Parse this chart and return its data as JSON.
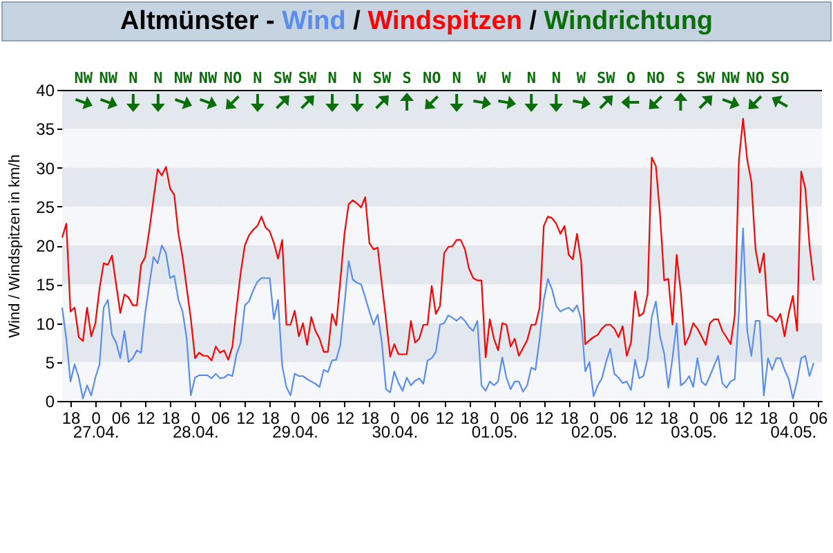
{
  "chart_data": {
    "type": "line",
    "title": "Altmünster - Wind / Windspitzen / Windrichtung",
    "ylabel": "Wind / Windspitzen in km/h",
    "x": [
      "--04-26T16:00",
      "--04-26T17:00",
      "--04-26T18:00",
      "--04-26T19:00",
      "--04-26T20:00",
      "--04-26T21:00",
      "--04-26T22:00",
      "--04-26T23:00",
      "--04-27T00:00",
      "--04-27T01:00",
      "--04-27T02:00",
      "--04-27T03:00",
      "--04-27T04:00",
      "--04-27T05:00",
      "--04-27T06:00",
      "--04-27T07:00",
      "--04-27T08:00",
      "--04-27T09:00",
      "--04-27T10:00",
      "--04-27T11:00",
      "--04-27T12:00",
      "--04-27T13:00",
      "--04-27T14:00",
      "--04-27T15:00",
      "--04-27T16:00",
      "--04-27T17:00",
      "--04-27T18:00",
      "--04-27T19:00",
      "--04-27T20:00",
      "--04-27T21:00",
      "--04-27T22:00",
      "--04-27T23:00",
      "--04-28T00:00",
      "--04-28T01:00",
      "--04-28T02:00",
      "--04-28T03:00",
      "--04-28T04:00",
      "--04-28T05:00",
      "--04-28T06:00",
      "--04-28T07:00",
      "--04-28T08:00",
      "--04-28T09:00",
      "--04-28T10:00",
      "--04-28T11:00",
      "--04-28T12:00",
      "--04-28T13:00",
      "--04-28T14:00",
      "--04-28T15:00",
      "--04-28T16:00",
      "--04-28T17:00",
      "--04-28T18:00",
      "--04-28T19:00",
      "--04-28T20:00",
      "--04-28T21:00",
      "--04-28T22:00",
      "--04-28T23:00",
      "--04-29T00:00",
      "--04-29T01:00",
      "--04-29T02:00",
      "--04-29T03:00",
      "--04-29T04:00",
      "--04-29T05:00",
      "--04-29T06:00",
      "--04-29T07:00",
      "--04-29T08:00",
      "--04-29T09:00",
      "--04-29T10:00",
      "--04-29T11:00",
      "--04-29T12:00",
      "--04-29T13:00",
      "--04-29T14:00",
      "--04-29T15:00",
      "--04-29T16:00",
      "--04-29T17:00",
      "--04-29T18:00",
      "--04-29T19:00",
      "--04-29T20:00",
      "--04-29T21:00",
      "--04-29T22:00",
      "--04-29T23:00",
      "--04-30T00:00",
      "--04-30T01:00",
      "--04-30T02:00",
      "--04-30T03:00",
      "--04-30T04:00",
      "--04-30T05:00",
      "--04-30T06:00",
      "--04-30T07:00",
      "--04-30T08:00",
      "--04-30T09:00",
      "--04-30T10:00",
      "--04-30T11:00",
      "--04-30T12:00",
      "--04-30T13:00",
      "--04-30T14:00",
      "--04-30T15:00",
      "--04-30T16:00",
      "--04-30T17:00",
      "--04-30T18:00",
      "--04-30T19:00",
      "--04-30T20:00",
      "--04-30T21:00",
      "--04-30T22:00",
      "--04-30T23:00",
      "--05-01T00:00",
      "--05-01T01:00",
      "--05-01T02:00",
      "--05-01T03:00",
      "--05-01T04:00",
      "--05-01T05:00",
      "--05-01T06:00",
      "--05-01T07:00",
      "--05-01T08:00",
      "--05-01T09:00",
      "--05-01T10:00",
      "--05-01T11:00",
      "--05-01T12:00",
      "--05-01T13:00",
      "--05-01T14:00",
      "--05-01T15:00",
      "--05-01T16:00",
      "--05-01T17:00",
      "--05-01T18:00",
      "--05-01T19:00",
      "--05-01T20:00",
      "--05-01T21:00",
      "--05-01T22:00",
      "--05-01T23:00",
      "--05-02T00:00",
      "--05-02T01:00",
      "--05-02T02:00",
      "--05-02T03:00",
      "--05-02T04:00",
      "--05-02T05:00",
      "--05-02T06:00",
      "--05-02T07:00",
      "--05-02T08:00",
      "--05-02T09:00",
      "--05-02T10:00",
      "--05-02T11:00",
      "--05-02T12:00",
      "--05-02T13:00",
      "--05-02T14:00",
      "--05-02T15:00",
      "--05-02T16:00",
      "--05-02T17:00",
      "--05-02T18:00",
      "--05-02T19:00",
      "--05-02T20:00",
      "--05-02T21:00",
      "--05-02T22:00",
      "--05-02T23:00",
      "--05-03T00:00",
      "--05-03T01:00",
      "--05-03T02:00",
      "--05-03T03:00",
      "--05-03T04:00",
      "--05-03T05:00",
      "--05-03T06:00",
      "--05-03T07:00",
      "--05-03T08:00",
      "--05-03T09:00",
      "--05-03T10:00",
      "--05-03T11:00",
      "--05-03T12:00",
      "--05-03T13:00",
      "--05-03T14:00",
      "--05-03T15:00",
      "--05-03T16:00",
      "--05-03T17:00",
      "--05-03T18:00",
      "--05-03T19:00",
      "--05-03T20:00",
      "--05-03T21:00",
      "--05-03T22:00",
      "--05-03T23:00",
      "--05-04T00:00",
      "--05-04T01:00",
      "--05-04T02:00",
      "--05-04T03:00",
      "--05-04T04:00",
      "--05-04T05:00"
    ],
    "series": [
      {
        "color": "#5b8def",
        "values": [
          12,
          8,
          2.5,
          4.7,
          3,
          0.3,
          2,
          0.7,
          3,
          4.7,
          12,
          13,
          8.5,
          7.5,
          5.5,
          9,
          5,
          5.5,
          6.5,
          6.2,
          11.3,
          15,
          18.5,
          17.7,
          20,
          19,
          15.8,
          16.1,
          13,
          11.5,
          8,
          0.7,
          3,
          3.3,
          3.3,
          3.3,
          2.9,
          3.5,
          2.9,
          3,
          3.4,
          3.2,
          6,
          7.5,
          12.3,
          12.8,
          14.2,
          15.3,
          15.8,
          15.8,
          15.8,
          10.5,
          13,
          4.5,
          1.8,
          0.7,
          3.5,
          3.2,
          3.2,
          2.8,
          2.5,
          2.2,
          1.8,
          4,
          3.7,
          5.2,
          5.3,
          7.2,
          12.5,
          18,
          15.6,
          15.2,
          15,
          13.3,
          11.5,
          9.8,
          11.1,
          7.5,
          1.5,
          1.1,
          3.8,
          2.3,
          1.3,
          3,
          2,
          2.6,
          2.9,
          2.2,
          5.2,
          5.5,
          6.3,
          9.8,
          10,
          11,
          10.7,
          10.3,
          10.8,
          10.3,
          9.5,
          9,
          10.3,
          2,
          1.3,
          2.5,
          2,
          2.5,
          5.6,
          3,
          1.5,
          2.5,
          2.5,
          1.2,
          2,
          4.3,
          4,
          8,
          13,
          15.7,
          14.3,
          12.2,
          11.5,
          11.8,
          12,
          11.5,
          12.3,
          10.5,
          3.8,
          5,
          0.6,
          2,
          2.9,
          5,
          6.7,
          3.5,
          3,
          2.3,
          2.5,
          1.4,
          5.3,
          2.9,
          3.2,
          5.4,
          10.8,
          12.8,
          8.3,
          6.1,
          1.7,
          5.5,
          10,
          2,
          2.4,
          3.2,
          1.8,
          5.5,
          2.5,
          2,
          3.2,
          4.5,
          5.8,
          2.3,
          1.7,
          2.5,
          2.8,
          11.5,
          22.2,
          9,
          5.8,
          10.3,
          10.3,
          0.7,
          5.5,
          4,
          5.5,
          5.5,
          4,
          2.8,
          0.3,
          2.5,
          5.5,
          5.8,
          3.2,
          4.9
        ]
      },
      {
        "color": "#ff0000",
        "values": [
          21,
          22.8,
          11.5,
          12,
          8.2,
          7.7,
          12,
          8.3,
          10,
          14.5,
          17.7,
          17.5,
          18.7,
          15,
          11.3,
          13.7,
          13.3,
          12.3,
          12.3,
          17.5,
          18.5,
          22,
          26,
          29.8,
          29,
          30.1,
          27.3,
          26.5,
          21.5,
          18.5,
          14.5,
          10.5,
          5.5,
          6.2,
          5.8,
          5.8,
          5.2,
          7,
          6.2,
          6.5,
          5.3,
          7,
          12,
          16.5,
          20,
          21.3,
          22,
          22.5,
          23.7,
          22.3,
          21.8,
          20.3,
          18.3,
          20.7,
          9.8,
          9.8,
          11.6,
          8.3,
          10,
          7.2,
          10.8,
          9,
          8,
          6.3,
          6.3,
          11.2,
          9.7,
          15.5,
          21.5,
          25.3,
          25.8,
          25.4,
          24.9,
          26.2,
          20.3,
          19.5,
          19.7,
          15,
          10.5,
          5.7,
          7.3,
          6,
          6,
          6,
          10.3,
          7.5,
          8,
          9.8,
          9.8,
          14.8,
          11.2,
          12.2,
          19,
          19.8,
          19.9,
          20.7,
          20.7,
          19.5,
          17,
          15.8,
          15.5,
          15.5,
          5.6,
          10.5,
          8,
          6.5,
          10,
          9.8,
          7,
          8,
          5.8,
          6.8,
          7.8,
          9.8,
          9.8,
          12,
          22.5,
          23.7,
          23.5,
          22.8,
          21.5,
          22.5,
          18.8,
          18.2,
          21.5,
          18,
          7.3,
          7.8,
          8.2,
          8.5,
          9.3,
          9.8,
          9.8,
          9.3,
          8.2,
          9.6,
          5.8,
          7.5,
          14.1,
          10.9,
          11.3,
          13.7,
          31.3,
          30.2,
          24,
          15.5,
          15.7,
          9.8,
          18.8,
          14,
          7.2,
          8.3,
          10,
          9.3,
          8.3,
          7.2,
          10,
          10.5,
          10.5,
          9,
          8.2,
          7.3,
          11,
          31,
          36.3,
          31,
          28.2,
          19.5,
          16.5,
          19,
          11,
          10.8,
          10.2,
          11.2,
          8.3,
          11.3,
          13.5,
          9,
          29.5,
          27.3,
          20,
          15.5
        ]
      }
    ],
    "xlim": [
      "--04-26T16:00",
      "--05-04T07:00"
    ],
    "xticks": [
      {
        "value": "--04-26T18:00",
        "label": "18"
      },
      {
        "value": "--04-27T00:00",
        "label": "0"
      },
      {
        "value": "--04-27T06:00",
        "label": "06"
      },
      {
        "value": "--04-27T12:00",
        "label": "12"
      },
      {
        "value": "--04-27T18:00",
        "label": "18"
      },
      {
        "value": "--04-28T00:00",
        "label": "0"
      },
      {
        "value": "--04-28T06:00",
        "label": "06"
      },
      {
        "value": "--04-28T12:00",
        "label": "12"
      },
      {
        "value": "--04-28T18:00",
        "label": "18"
      },
      {
        "value": "--04-29T00:00",
        "label": "0"
      },
      {
        "value": "--04-29T06:00",
        "label": "06"
      },
      {
        "value": "--04-29T12:00",
        "label": "12"
      },
      {
        "value": "--04-29T18:00",
        "label": "18"
      },
      {
        "value": "--04-30T00:00",
        "label": "0"
      },
      {
        "value": "--04-30T06:00",
        "label": "06"
      },
      {
        "value": "--04-30T12:00",
        "label": "12"
      },
      {
        "value": "--04-30T18:00",
        "label": "18"
      },
      {
        "value": "--05-01T00:00",
        "label": "0"
      },
      {
        "value": "--05-01T06:00",
        "label": "06"
      },
      {
        "value": "--05-01T12:00",
        "label": "12"
      },
      {
        "value": "--05-01T18:00",
        "label": "18"
      },
      {
        "value": "--05-02T00:00",
        "label": "0"
      },
      {
        "value": "--05-02T06:00",
        "label": "06"
      },
      {
        "value": "--05-02T12:00",
        "label": "12"
      },
      {
        "value": "--05-02T18:00",
        "label": "18"
      },
      {
        "value": "--05-03T00:00",
        "label": "0"
      },
      {
        "value": "--05-03T06:00",
        "label": "06"
      },
      {
        "value": "--05-03T12:00",
        "label": "12"
      },
      {
        "value": "--05-03T18:00",
        "label": "18"
      },
      {
        "value": "--05-04T00:00",
        "label": "0"
      },
      {
        "value": "--05-04T06:00",
        "label": "06"
      }
    ],
    "x2lim": [
      "--04-26T16:00",
      "--05-04T07:00"
    ],
    "x2ticks": [
      {
        "value": "--04-27T00:00",
        "label": "27.04."
      },
      {
        "value": "--04-28T00:00",
        "label": "28.04."
      },
      {
        "value": "--04-29T00:00",
        "label": "29.04."
      },
      {
        "value": "--04-30T00:00",
        "label": "30.04."
      },
      {
        "value": "--05-01T00:00",
        "label": "01.05."
      },
      {
        "value": "--05-02T00:00",
        "label": "02.05."
      },
      {
        "value": "--05-03T00:00",
        "label": "03.05."
      },
      {
        "value": "--05-04T00:00",
        "label": "04.05."
      }
    ],
    "annotations": [
      "NW",
      "NW",
      "N",
      "N",
      "NW",
      "NW",
      "NO",
      "N",
      "SW",
      "SW",
      "N",
      "N",
      "SW",
      "S",
      "NO",
      "N",
      "W",
      "W",
      "N",
      "N",
      "W",
      "SW",
      "O",
      "NO",
      "S",
      "SW",
      "NW",
      "NO",
      "SO"
    ],
    "ylim": [
      0,
      40
    ],
    "yticks": [
      0,
      5,
      10,
      15,
      20,
      25,
      30,
      35,
      40
    ],
    "grid": true
  }
}
